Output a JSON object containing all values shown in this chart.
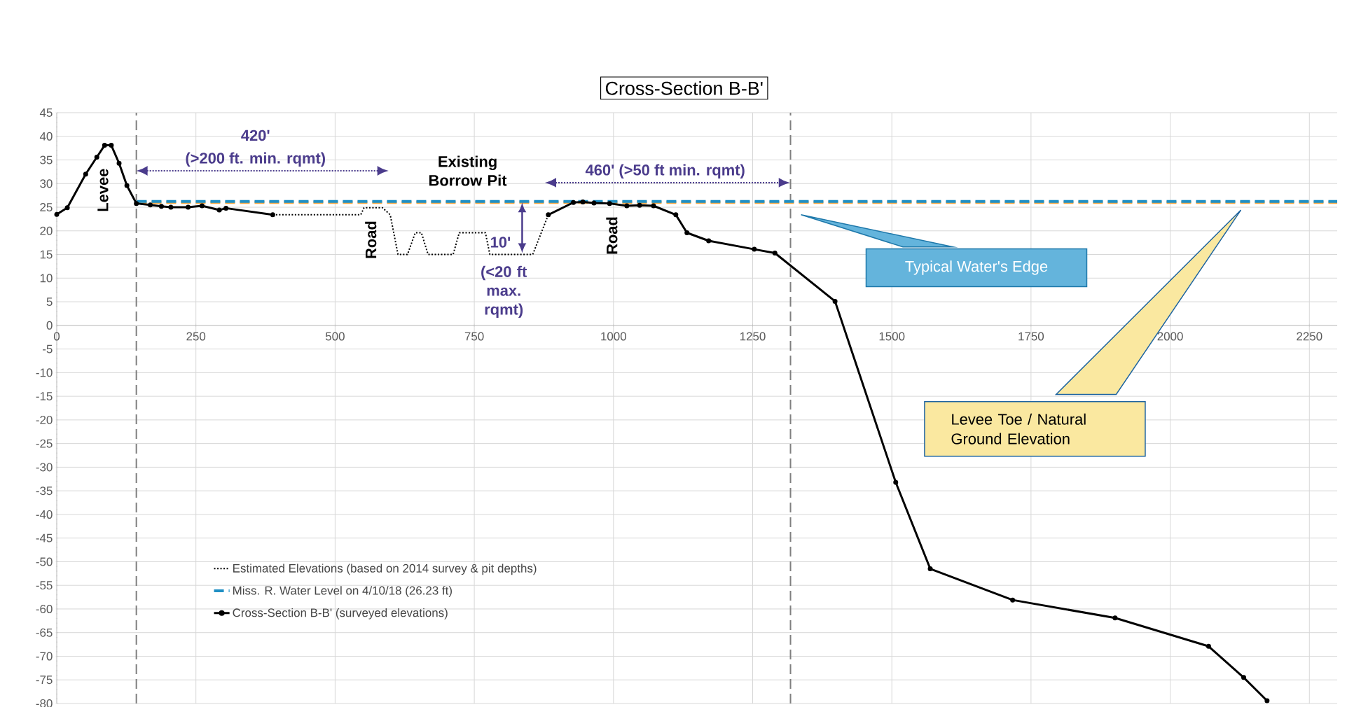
{
  "chart_data": {
    "type": "line",
    "title": "Cross-Section B-B'",
    "xlim": [
      0,
      2300
    ],
    "ylim": [
      -80,
      45
    ],
    "xticks": [
      0,
      250,
      500,
      750,
      1000,
      1250,
      1500,
      1750,
      2000,
      2250
    ],
    "yticks": [
      -80,
      -75,
      -70,
      -65,
      -60,
      -55,
      -50,
      -45,
      -40,
      -35,
      -30,
      -25,
      -20,
      -15,
      -10,
      -5,
      0,
      5,
      10,
      15,
      20,
      25,
      30,
      35,
      40,
      45
    ],
    "grid": true,
    "legend": "bottom left",
    "series": [
      {
        "color": "#f0a848",
        "line_style": "dashed",
        "marker": "none",
        "x": [
          144,
          2300
        ],
        "values": [
          26,
          26
        ]
      },
      {
        "name": "Estimated Elevations (based on 2014 survey & pit depths)",
        "color": "#000000",
        "line_style": "dotted",
        "marker": "none",
        "x": [
          388,
          546,
          552,
          585,
          599,
          613,
          630,
          644,
          655,
          667,
          712,
          723,
          770,
          778,
          855,
          883
        ],
        "values": [
          23.4,
          23.4,
          24.9,
          24.9,
          23.4,
          15,
          15,
          19.6,
          19.6,
          15,
          15,
          19.6,
          19.6,
          15,
          15,
          23.4
        ]
      },
      {
        "name": "Miss. R. Water Level on 4/10/18 (26.23 ft)",
        "color": "#1f8fc4",
        "line_style": "dashed",
        "marker": "none",
        "x": [
          144,
          2300
        ],
        "values": [
          26.23,
          26.23
        ]
      },
      {
        "name": "Cross-Section B-B' (surveyed elevations)",
        "color": "#000000",
        "line_style": "solid",
        "marker": "circle",
        "x": [
          0,
          19,
          52,
          72,
          86,
          98,
          112,
          126,
          143,
          168,
          188,
          205,
          236,
          261,
          292,
          304,
          388,
          600,
          883,
          928,
          945,
          965,
          993,
          1024,
          1047,
          1072,
          1112,
          1132,
          1171,
          1253,
          1290,
          1398,
          1507,
          1569,
          1717,
          1901,
          2069,
          2132,
          2174
        ],
        "values": [
          23.5,
          24.9,
          32,
          35.6,
          38.1,
          38.1,
          34.3,
          29.6,
          25.8,
          25.5,
          25.2,
          25,
          25,
          25.3,
          24.4,
          24.8,
          23.4,
          null,
          23.4,
          26,
          26.1,
          25.9,
          25.8,
          25.3,
          25.4,
          25.3,
          23.4,
          19.6,
          17.9,
          16.1,
          15.3,
          5.1,
          -33.2,
          -51.5,
          -58.1,
          -61.9,
          -67.9,
          -74.5,
          -79.4
        ]
      }
    ],
    "ref_lines": [
      {
        "axis": "x",
        "value": 143,
        "color": "#7f7f7f",
        "line_style": "dashed"
      },
      {
        "axis": "x",
        "value": 1318,
        "color": "#7f7f7f",
        "line_style": "dashed"
      }
    ],
    "annotations": [
      "Levee",
      "420'",
      "(>200 ft. min. rqmt)",
      "Existing Borrow Pit",
      "460' (>50 ft min. rqmt)",
      "Road",
      "Road",
      "10'",
      "(<20 ft max. rqmt)",
      "Typical Water's Edge",
      "Levee Toe / Natural Ground Elevation"
    ]
  }
}
